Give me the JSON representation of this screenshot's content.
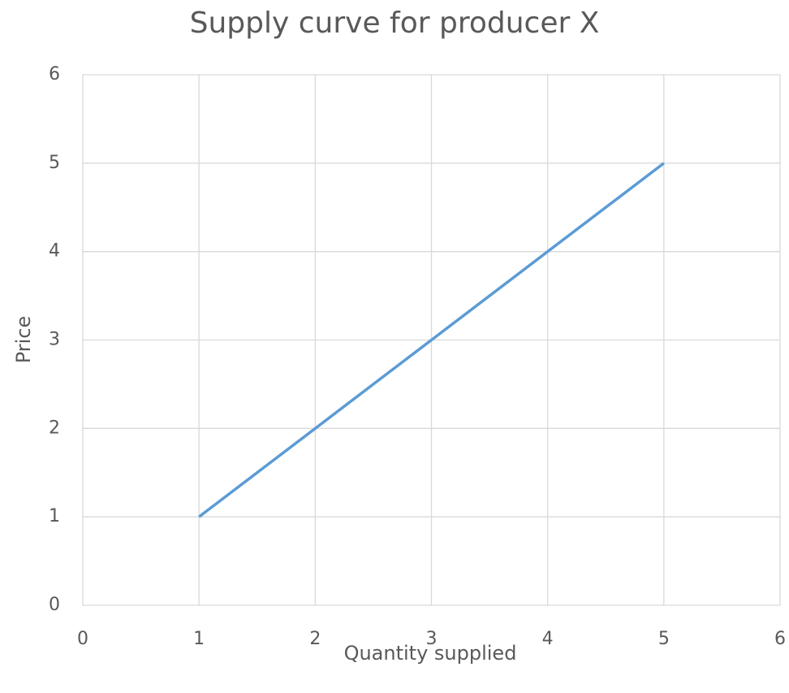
{
  "chart_data": {
    "type": "line",
    "title": "Supply curve for producer X",
    "x_label": "Quantity supplied",
    "y_label": "Price",
    "x": [
      1,
      2,
      3,
      4,
      5
    ],
    "values": [
      1,
      2,
      3,
      4,
      5
    ],
    "color": "#5b9bd5",
    "xlim": [
      0,
      6
    ],
    "xticks": [
      0,
      1,
      2,
      3,
      4,
      5,
      6
    ],
    "ylim": [
      0,
      6
    ],
    "yticks": [
      0,
      1,
      2,
      3,
      4,
      5,
      6
    ],
    "grid": true
  }
}
